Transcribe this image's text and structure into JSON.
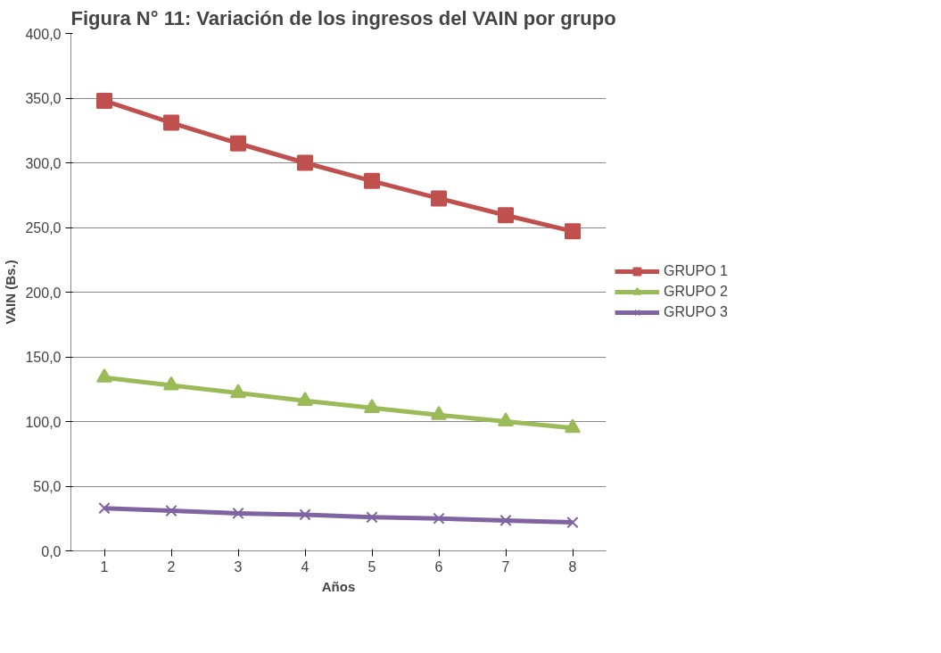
{
  "chart_data": {
    "type": "line",
    "title": "Figura N° 11: Variación de los ingresos del VAIN por grupo",
    "xlabel": "Años",
    "ylabel": "VAIN (Bs.)",
    "categories": [
      "1",
      "2",
      "3",
      "4",
      "5",
      "6",
      "7",
      "8"
    ],
    "series": [
      {
        "name": "GRUPO 1",
        "color": "#c0504d",
        "marker": "square",
        "values": [
          348,
          331,
          315,
          300,
          286,
          272.5,
          259.5,
          247
        ]
      },
      {
        "name": "GRUPO 2",
        "color": "#9bbb59",
        "marker": "triangle",
        "values": [
          134,
          128,
          122,
          116,
          110.5,
          105,
          100,
          95
        ]
      },
      {
        "name": "GRUPO 3",
        "color": "#8064a2",
        "marker": "x",
        "values": [
          33,
          31,
          29,
          28,
          26,
          25,
          23.5,
          22
        ]
      }
    ],
    "ylim": [
      0,
      400
    ],
    "yticks": [
      {
        "value": 0,
        "label": "0,0"
      },
      {
        "value": 50,
        "label": "50,0"
      },
      {
        "value": 100,
        "label": "100,0"
      },
      {
        "value": 150,
        "label": "150,0"
      },
      {
        "value": 200,
        "label": "200,0"
      },
      {
        "value": 250,
        "label": "250,0"
      },
      {
        "value": 300,
        "label": "300,0"
      },
      {
        "value": 350,
        "label": "350,0"
      },
      {
        "value": 400,
        "label": "400,0"
      }
    ],
    "grid": "y",
    "legend": "right",
    "line_style": "solid"
  }
}
